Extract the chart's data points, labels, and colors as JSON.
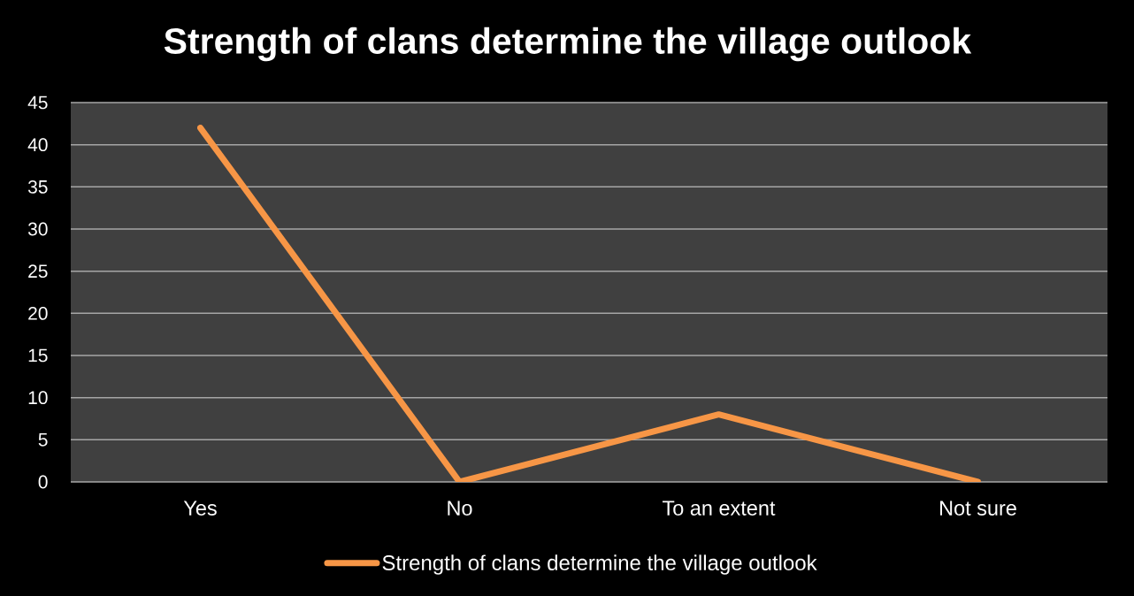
{
  "chart_data": {
    "type": "line",
    "title": "Strength of clans determine the village outlook",
    "categories": [
      "Yes",
      "No",
      "To an extent",
      "Not sure"
    ],
    "series": [
      {
        "name": "Strength of clans determine the village outlook",
        "color": "#f79646",
        "values": [
          42,
          0,
          8,
          0
        ]
      }
    ],
    "ylim": [
      0,
      45
    ],
    "yticks": [
      0,
      5,
      10,
      15,
      20,
      25,
      30,
      35,
      40,
      45
    ],
    "grid": "y",
    "legend": "bottom",
    "marker": "none",
    "line_style": "solid"
  }
}
